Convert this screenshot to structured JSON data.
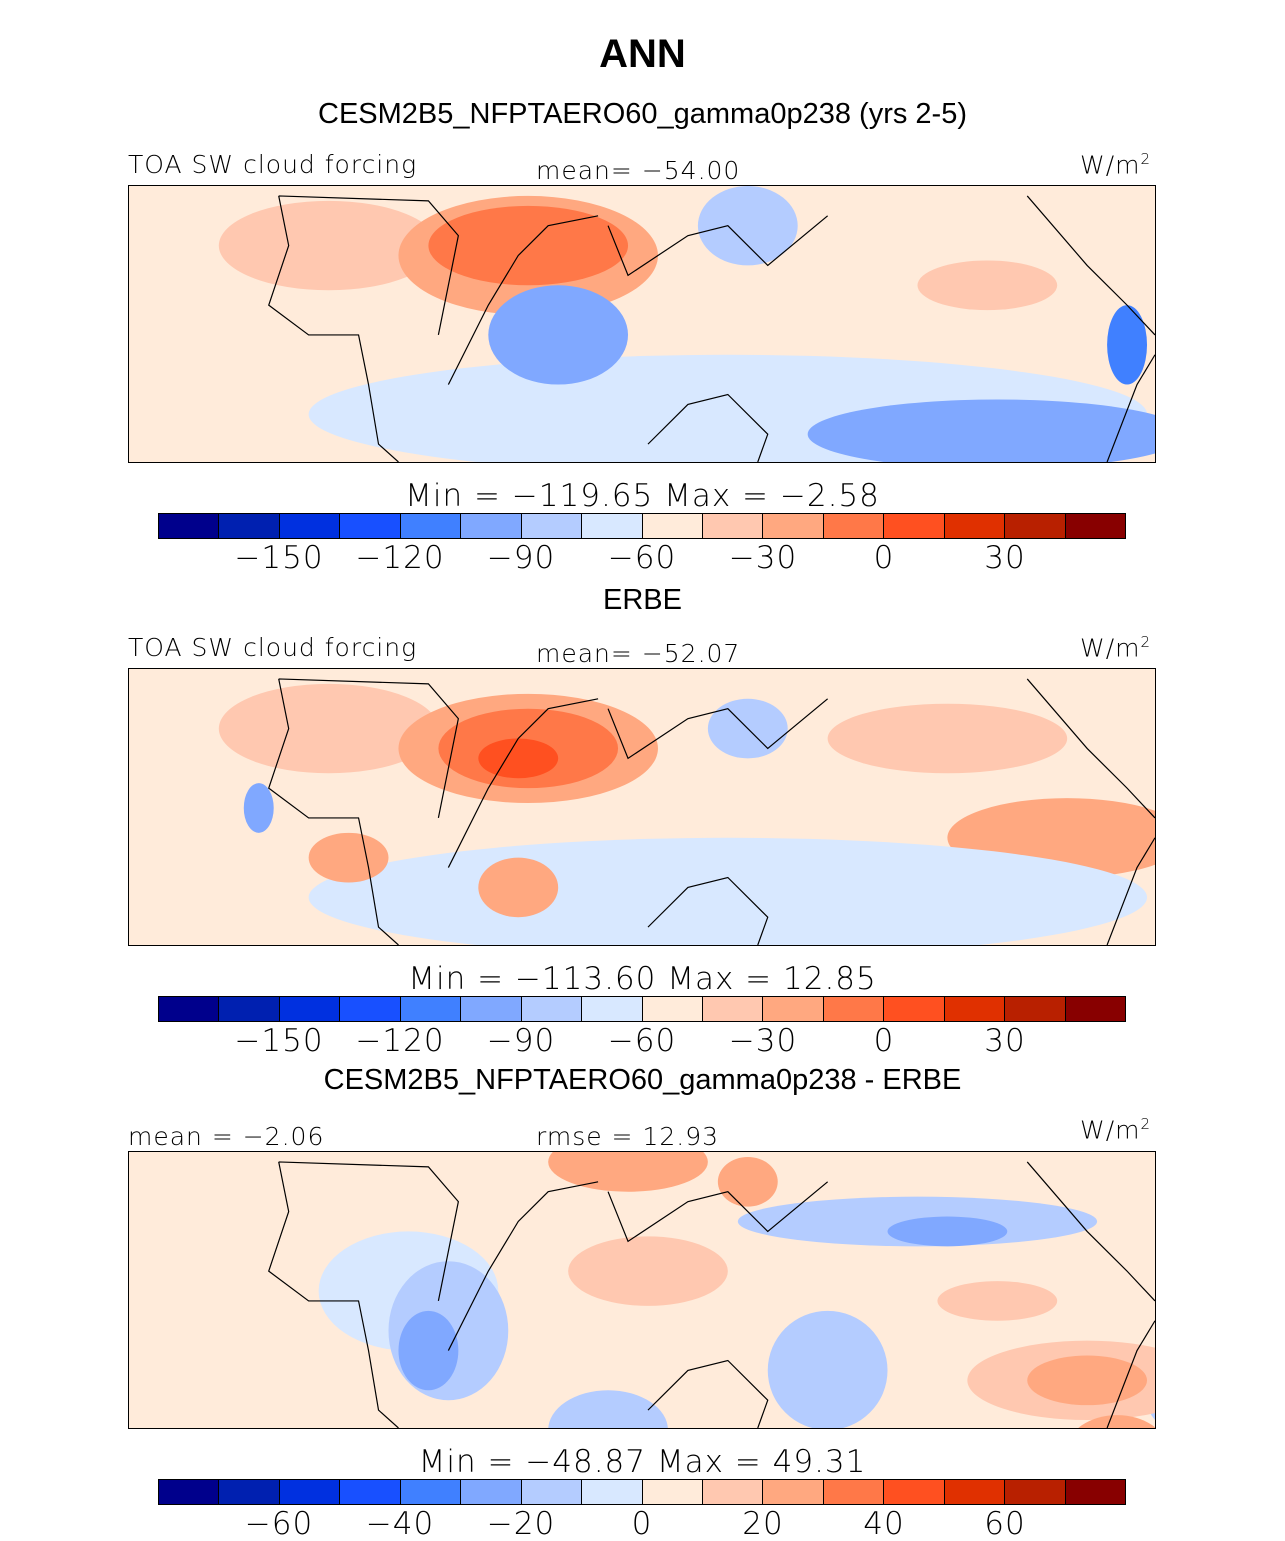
{
  "title": "ANN",
  "units": "W/m",
  "units_sup": "2",
  "colors": [
    "#00008c",
    "#0020b0",
    "#0030e0",
    "#1850ff",
    "#4080ff",
    "#80a8ff",
    "#b4ccff",
    "#d8e8ff",
    "#ffebda",
    "#ffc8b0",
    "#ffa880",
    "#ff7848",
    "#ff5020",
    "#e03000",
    "#b82000",
    "#880000"
  ],
  "chart_data": [
    {
      "type": "heatmap",
      "title": "CESM2B5_NFPTAERO60_gamma0p238 (yrs 2-5)",
      "variable": "TOA SW cloud forcing",
      "mean_label": "mean=",
      "mean": "−54.00",
      "minmax": "Min  =  −119.65  Max  =   −2.58",
      "ticks": [
        "−150",
        "−120",
        "−90",
        "−60",
        "−30",
        "0",
        "30"
      ]
    },
    {
      "type": "heatmap",
      "title": "ERBE",
      "variable": "TOA SW cloud forcing",
      "mean_label": "mean=",
      "mean": "−52.07",
      "minmax": "Min  =  −113.60  Max  =   12.85",
      "ticks": [
        "−150",
        "−120",
        "−90",
        "−60",
        "−30",
        "0",
        "30"
      ]
    },
    {
      "type": "heatmap",
      "title": "CESM2B5_NFPTAERO60_gamma0p238 - ERBE",
      "mean_label": "mean  =   −2.06",
      "rmse_label": "rmse  =   12.93",
      "minmax": "Min  =  −48.87  Max  =   49.31",
      "ticks": [
        "−60",
        "−40",
        "−20",
        "0",
        "20",
        "40",
        "60"
      ]
    }
  ]
}
